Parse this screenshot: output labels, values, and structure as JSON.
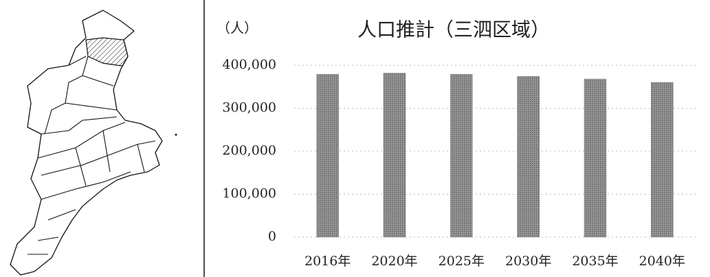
{
  "chart_data": {
    "type": "bar",
    "title": "人口推計（三泗区域）",
    "y_label": "（人）",
    "categories": [
      "2016年",
      "2020年",
      "2025年",
      "2030年",
      "2035年",
      "2040年"
    ],
    "values": [
      379000,
      382000,
      379000,
      374000,
      368000,
      360000
    ],
    "color": "#7a7a7a",
    "ylim": [
      0,
      400000
    ],
    "yticks": [
      0,
      {
        "value": 100000,
        "label": "100,000"
      },
      {
        "value": 200000,
        "label": "200,000"
      },
      {
        "value": 300000,
        "label": "300,000"
      },
      {
        "value": 400000,
        "label": "400,000"
      }
    ],
    "grid": true
  }
}
